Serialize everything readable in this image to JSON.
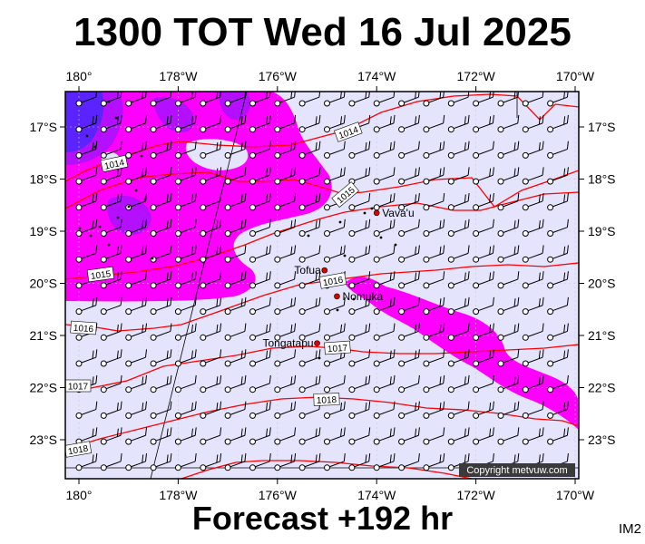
{
  "title": "1300 TOT Wed 16 Jul 2025",
  "forecast": "Forecast +192 hr",
  "corner_label": "IM2",
  "copyright": "Copyright metvuw.com",
  "lon_labels": [
    "180°",
    "178°W",
    "176°W",
    "174°W",
    "172°W",
    "170°W"
  ],
  "lat_labels": [
    "17°S",
    "18°S",
    "19°S",
    "20°S",
    "21°S",
    "22°S",
    "23°S"
  ],
  "places": [
    {
      "name": "Vava'u",
      "lon": -174.0,
      "lat": -18.65
    },
    {
      "name": "Tofua",
      "lon": -175.05,
      "lat": -19.75
    },
    {
      "name": "Nomuka",
      "lon": -174.8,
      "lat": -20.25
    },
    {
      "name": "Tongatapu",
      "lon": -175.2,
      "lat": -21.15
    }
  ],
  "isobar_labels": [
    "1014",
    "1014",
    "1015",
    "1015",
    "1016",
    "1016",
    "1017",
    "1018",
    "1018",
    "1017"
  ],
  "colors": {
    "ocean": "#e4e4fc",
    "rain_magenta": "#ff00ff",
    "rain_violet": "#b40fff",
    "rain_blue": "#5a23ff",
    "isobar": "#ff0000",
    "wind": "#000000"
  }
}
